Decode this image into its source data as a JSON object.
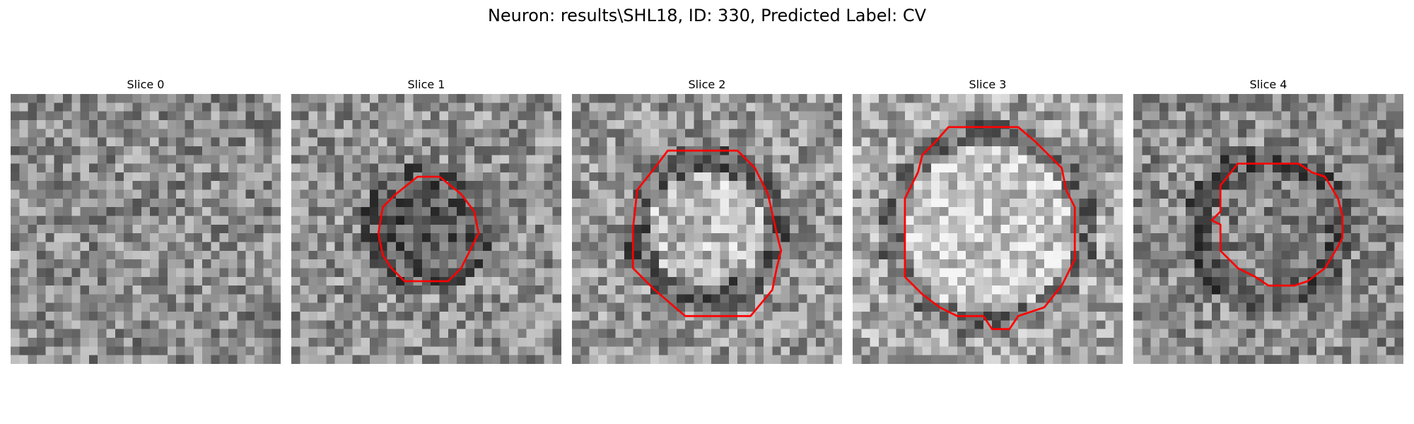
{
  "title": "Neuron: results\\SHL18, ID: 330, Predicted Label: CV",
  "colormap": "gray",
  "contour_color": "#ff0000",
  "panels": [
    {
      "label": "Slice 0",
      "seed": 11,
      "base": 140,
      "has_contour": false
    },
    {
      "label": "Slice 1",
      "seed": 23,
      "base": 145,
      "has_contour": true,
      "contour_size": "small",
      "center_tone": "dark"
    },
    {
      "label": "Slice 2",
      "seed": 37,
      "base": 150,
      "has_contour": true,
      "contour_size": "medium",
      "center_tone": "light"
    },
    {
      "label": "Slice 3",
      "seed": 41,
      "base": 165,
      "has_contour": true,
      "contour_size": "large",
      "center_tone": "light"
    },
    {
      "label": "Slice 4",
      "seed": 53,
      "base": 140,
      "has_contour": true,
      "contour_size": "medium",
      "center_tone": "mixed"
    }
  ]
}
